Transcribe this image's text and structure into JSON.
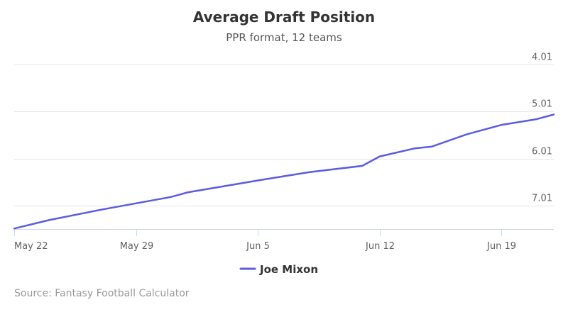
{
  "chart_data": {
    "type": "line",
    "title": "Average Draft Position",
    "subtitle": "PPR format, 12 teams",
    "y_axis": {
      "reversed": true,
      "ticks": [
        4.01,
        5.01,
        6.01,
        7.01
      ],
      "tick_labels": [
        "4.01",
        "5.01",
        "6.01",
        "7.01"
      ],
      "range": [
        7.5,
        3.95
      ],
      "grid": true,
      "position": "right"
    },
    "x_axis": {
      "ticks": [
        "2017-05-22",
        "2017-05-29",
        "2017-06-05",
        "2017-06-12",
        "2017-06-19"
      ],
      "tick_labels": [
        "May 22",
        "May 29",
        "Jun 5",
        "Jun 12",
        "Jun 19"
      ],
      "range": [
        "2017-05-22",
        "2017-06-22"
      ]
    },
    "series": [
      {
        "name": "Joe Mixon",
        "color": "#5b5cdf",
        "points": [
          {
            "x": "2017-05-22",
            "y": 7.49
          },
          {
            "x": "2017-05-24",
            "y": 7.31
          },
          {
            "x": "2017-05-27",
            "y": 7.09
          },
          {
            "x": "2017-05-31",
            "y": 6.82
          },
          {
            "x": "2017-06-01",
            "y": 6.72
          },
          {
            "x": "2017-06-05",
            "y": 6.47
          },
          {
            "x": "2017-06-06",
            "y": 6.41
          },
          {
            "x": "2017-06-08",
            "y": 6.29
          },
          {
            "x": "2017-06-11",
            "y": 6.16
          },
          {
            "x": "2017-06-12",
            "y": 5.96
          },
          {
            "x": "2017-06-14",
            "y": 5.79
          },
          {
            "x": "2017-06-15",
            "y": 5.75
          },
          {
            "x": "2017-06-17",
            "y": 5.49
          },
          {
            "x": "2017-06-19",
            "y": 5.29
          },
          {
            "x": "2017-06-21",
            "y": 5.17
          },
          {
            "x": "2017-06-22",
            "y": 5.07
          }
        ]
      }
    ],
    "legend": {
      "placement": "bottom-center"
    },
    "credits": "Source: Fantasy Football Calculator"
  }
}
